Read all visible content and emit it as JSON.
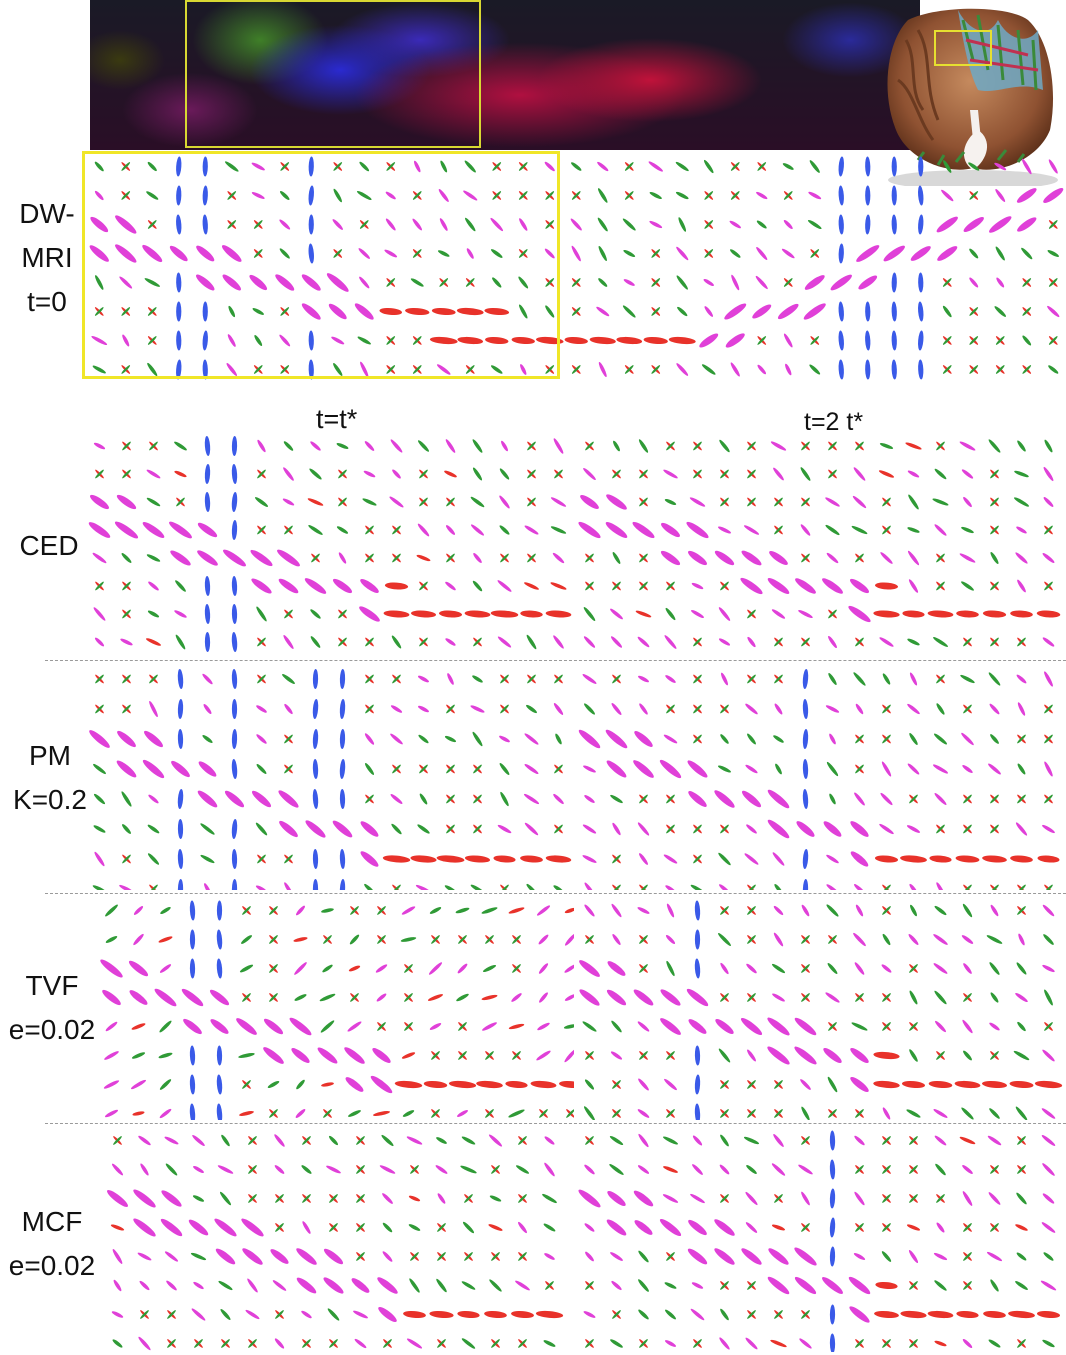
{
  "figure": {
    "row_labels": {
      "dwmri": [
        "DW-",
        "MRI",
        "t=0"
      ],
      "ced": [
        "CED"
      ],
      "pm": [
        "PM",
        "K=0.2"
      ],
      "tvf": [
        "TVF",
        "e=0.02"
      ],
      "mcf": [
        "MCF",
        "e=0.02"
      ]
    },
    "column_titles": {
      "left": "t=t*",
      "right": "t=2 t*"
    }
  },
  "colors": {
    "highlight_box": "#f0e628",
    "separator": "#9a9a9a",
    "glyph_red": "#e8322a",
    "glyph_magenta": "#e040d8",
    "glyph_blue": "#3a5ae8",
    "glyph_green": "#2f9a36"
  }
}
